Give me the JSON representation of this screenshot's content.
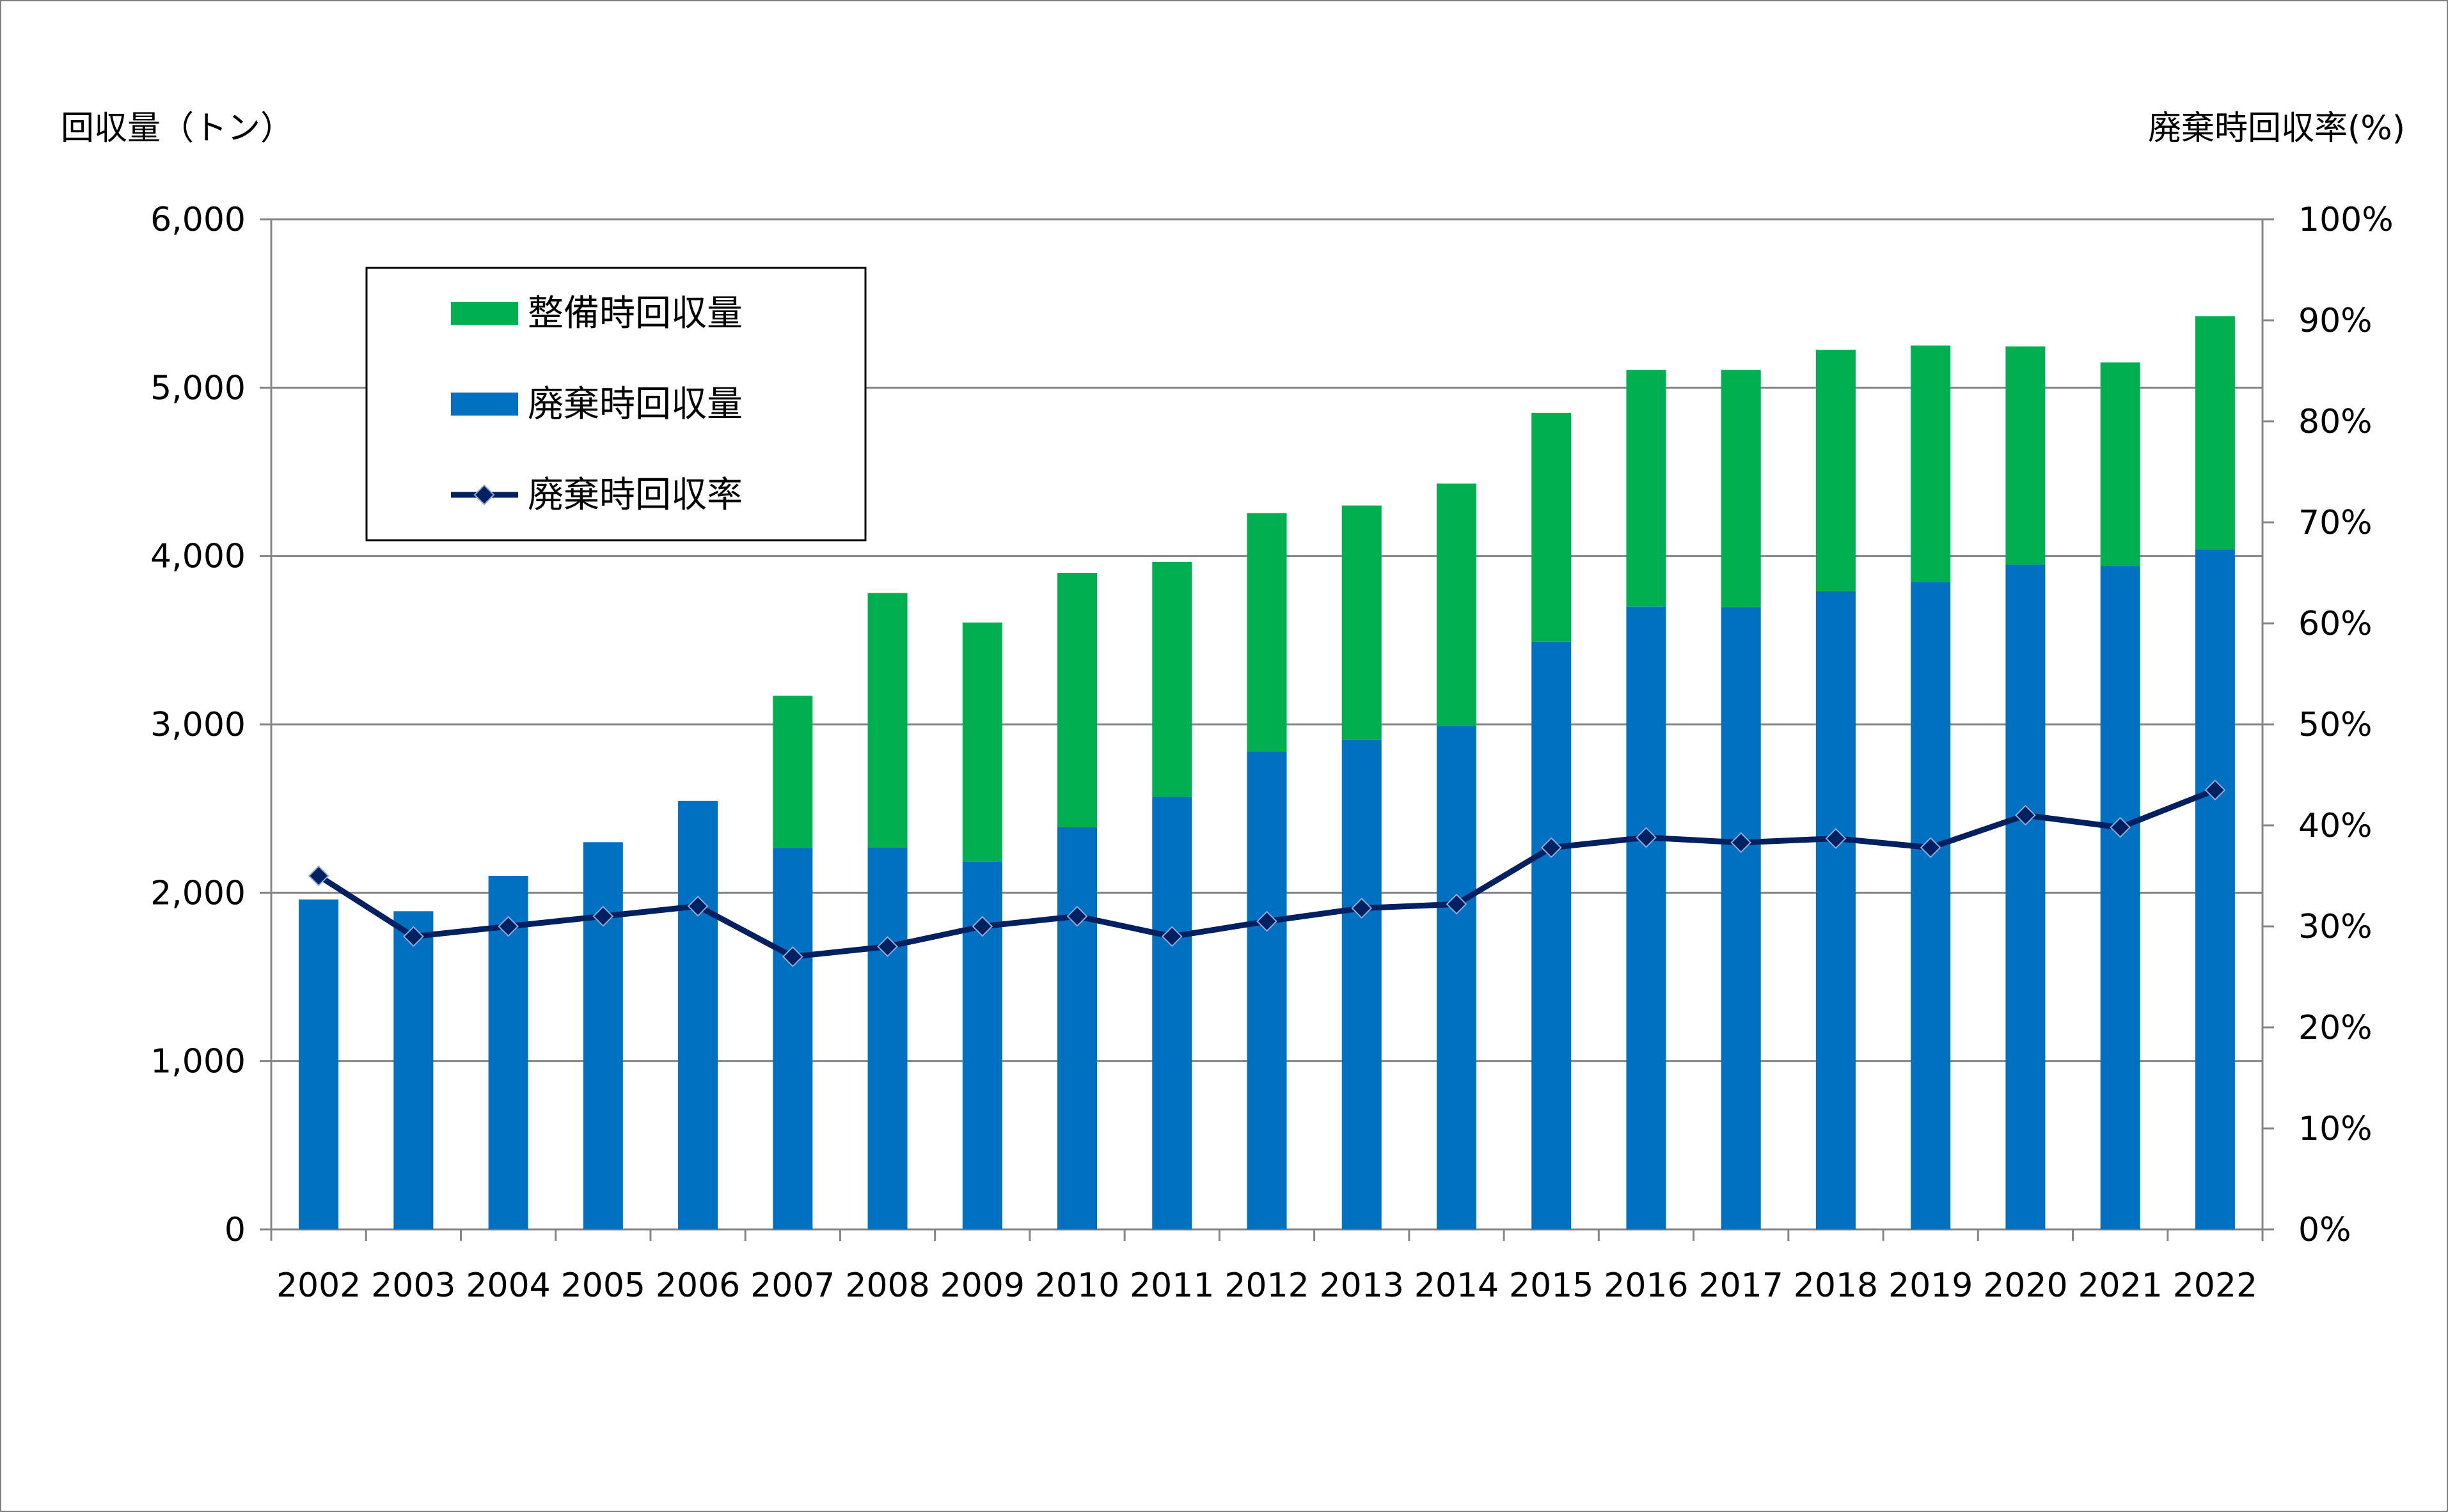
{
  "chart_data": {
    "type": "bar",
    "stacked": true,
    "x": [
      "2002",
      "2003",
      "2004",
      "2005",
      "2006",
      "2007",
      "2008",
      "2009",
      "2010",
      "2011",
      "2012",
      "2013",
      "2014",
      "2015",
      "2016",
      "2017",
      "2018",
      "2019",
      "2020",
      "2021",
      "2022"
    ],
    "series": [
      {
        "name": "廃棄時回収量",
        "type": "bar",
        "axis": "left",
        "color": "#0070c0",
        "values": [
          1960,
          1890,
          2100,
          2300,
          2545,
          2265,
          2270,
          2185,
          2390,
          2570,
          2840,
          2910,
          2990,
          3490,
          3700,
          3695,
          3790,
          3845,
          3950,
          3940,
          4040
        ]
      },
      {
        "name": "整備時回収量",
        "type": "bar",
        "axis": "left",
        "color": "#00b050",
        "values": [
          0,
          0,
          0,
          0,
          0,
          905,
          1510,
          1420,
          1510,
          1395,
          1415,
          1390,
          1440,
          1360,
          1405,
          1410,
          1435,
          1405,
          1295,
          1210,
          1385
        ]
      },
      {
        "name": "廃棄時回収率",
        "type": "line",
        "axis": "right",
        "color": "#002060",
        "values": [
          35,
          29,
          30,
          31,
          32,
          27,
          28,
          30,
          31,
          29,
          30.5,
          31.8,
          32.2,
          37.8,
          38.8,
          38.3,
          38.7,
          37.8,
          41,
          39.8,
          43.5
        ]
      }
    ],
    "ylabel": "回収量（トン）",
    "ylabel_right": "廃棄時回収率(%)",
    "ylim": [
      0,
      6000
    ],
    "yticks": [
      "0",
      "1,000",
      "2,000",
      "3,000",
      "4,000",
      "5,000",
      "6,000"
    ],
    "ylim_right": [
      0,
      100
    ],
    "yticks_right": [
      "0%",
      "10%",
      "20%",
      "30%",
      "40%",
      "50%",
      "60%",
      "70%",
      "80%",
      "90%",
      "100%"
    ],
    "grid": true,
    "legend": {
      "position": "top-left",
      "entries": [
        "整備時回収量",
        "廃棄時回収量",
        "廃棄時回収率"
      ]
    }
  }
}
